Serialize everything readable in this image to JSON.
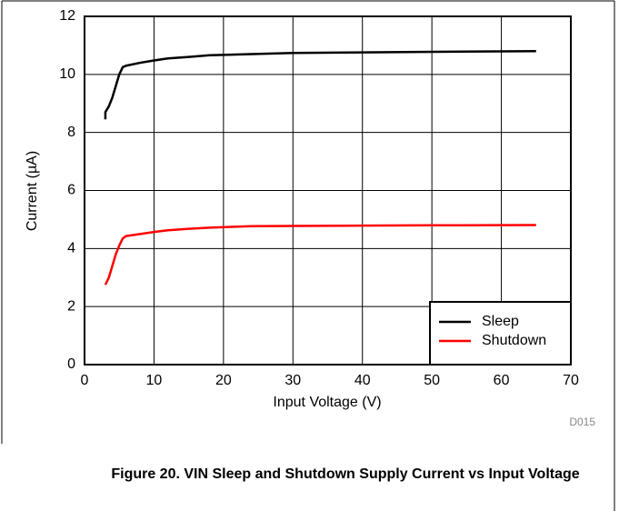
{
  "chart_data": {
    "type": "line",
    "x_label": "Input Voltage (V)",
    "y_label": "Current (µA)",
    "note": "D015",
    "caption": "Figure 20. VIN Sleep and Shutdown Supply Current vs Input Voltage",
    "x": [
      3,
      3,
      3.5,
      4,
      4.5,
      5,
      5.5,
      6,
      8,
      10,
      12,
      15,
      18,
      24,
      30,
      40,
      50,
      65
    ],
    "series": [
      {
        "name": "Sleep",
        "color": "#000000",
        "values": [
          8.45,
          8.7,
          8.9,
          9.2,
          9.6,
          10.0,
          10.25,
          10.3,
          10.4,
          10.48,
          10.55,
          10.6,
          10.66,
          10.7,
          10.74,
          10.76,
          10.78,
          10.8
        ]
      },
      {
        "name": "Shutdown",
        "color": "#ff0000",
        "values": [
          2.75,
          2.75,
          3.0,
          3.4,
          3.8,
          4.1,
          4.35,
          4.43,
          4.5,
          4.57,
          4.63,
          4.68,
          4.72,
          4.77,
          4.78,
          4.79,
          4.8,
          4.81
        ]
      }
    ],
    "xlim": [
      0,
      70
    ],
    "xticks": [
      0,
      10,
      20,
      30,
      40,
      50,
      60,
      70
    ],
    "ylim": [
      0,
      12
    ],
    "yticks": [
      0,
      2,
      4,
      6,
      8,
      10,
      12
    ],
    "grid": true,
    "legend": "lower right"
  }
}
